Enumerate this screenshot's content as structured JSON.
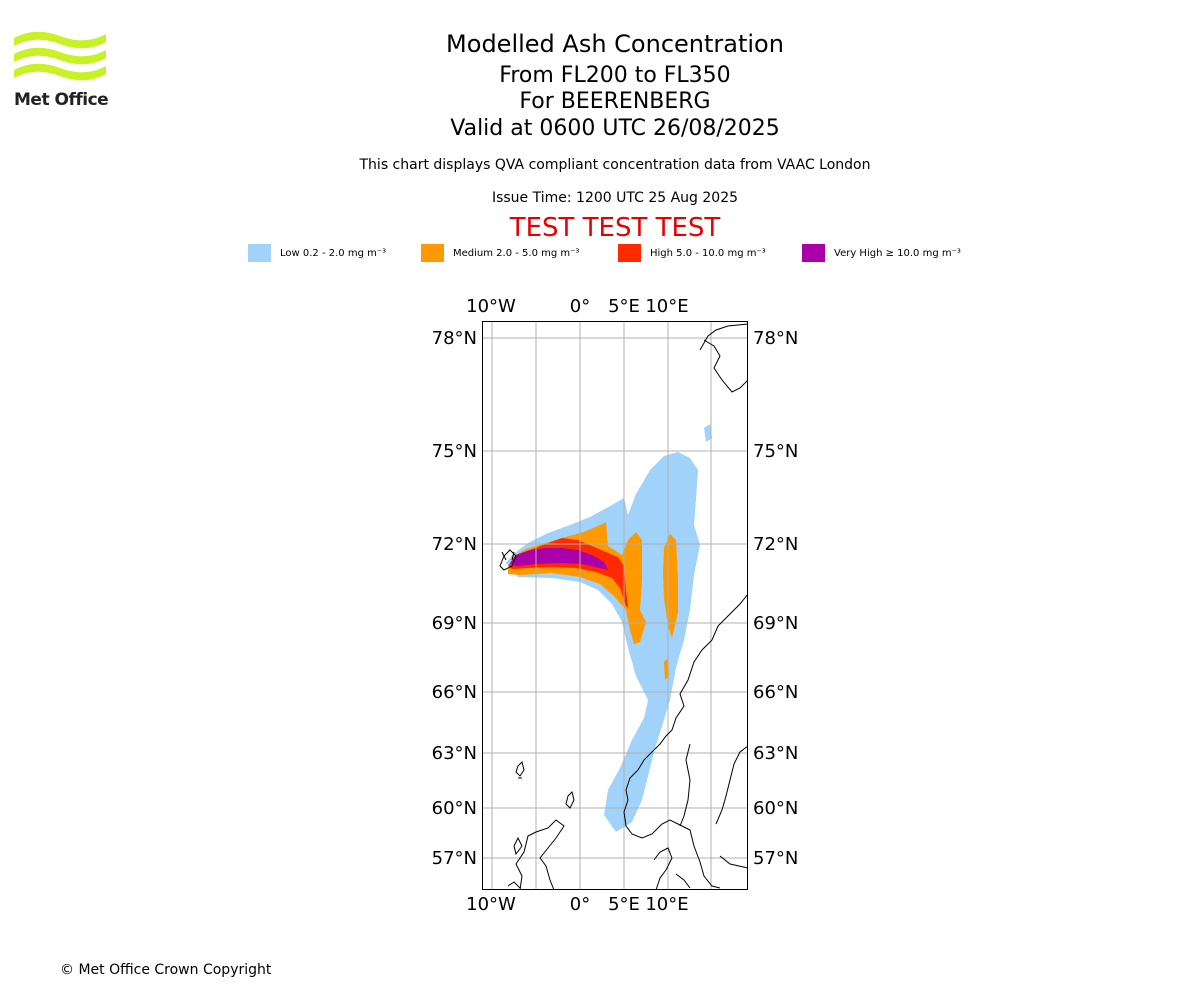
{
  "logo": {
    "text": "Met Office",
    "color": "#c8f227"
  },
  "title": {
    "main": "Modelled Ash Concentration",
    "levels": "From FL200 to FL350",
    "volcano": "For BEERENBERG",
    "valid": "Valid at 0600 UTC 26/08/2025"
  },
  "description": "This chart displays QVA compliant concentration data from VAAC London",
  "issue_time": "Issue Time: 1200 UTC 25 Aug 2025",
  "test_banner": "TEST TEST TEST",
  "legend": [
    {
      "label": "Low 0.2 - 2.0 mg m⁻³",
      "color": "#a0d2fa"
    },
    {
      "label": "Medium 2.0 - 5.0 mg m⁻³",
      "color": "#ff9900"
    },
    {
      "label": "High 5.0 - 10.0 mg m⁻³",
      "color": "#ff2a00"
    },
    {
      "label": "Very High ≥ 10.0 mg m⁻³",
      "color": "#aa00aa"
    }
  ],
  "map": {
    "lon_labels": [
      "10°W",
      "0°",
      "5°E",
      "10°E"
    ],
    "lat_labels": [
      "78°N",
      "75°N",
      "72°N",
      "69°N",
      "66°N",
      "63°N",
      "60°N",
      "57°N"
    ]
  },
  "copyright": "© Met Office Crown Copyright"
}
